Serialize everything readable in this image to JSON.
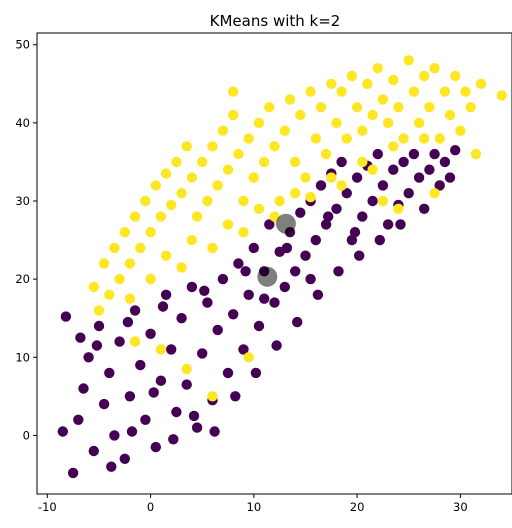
{
  "chart_data": {
    "type": "scatter",
    "title": "KMeans with k=2",
    "xlabel": "",
    "ylabel": "",
    "xlim": [
      -11,
      35
    ],
    "ylim": [
      -7.5,
      51.5
    ],
    "x_ticks": [
      -10,
      0,
      10,
      20,
      30
    ],
    "y_ticks": [
      0,
      10,
      20,
      30,
      40,
      50
    ],
    "grid": false,
    "legend": "none",
    "colors": {
      "cluster_0": "#440154",
      "cluster_1": "#fde725",
      "centroid": "#000000"
    },
    "clusters": [
      {
        "label": 0,
        "color": "#440154",
        "points": [
          [
            -8.5,
            0.5
          ],
          [
            -8.2,
            15.2
          ],
          [
            -7.5,
            -4.8
          ],
          [
            -7.0,
            2.0
          ],
          [
            -6.5,
            6.0
          ],
          [
            -6.0,
            10.0
          ],
          [
            -5.5,
            -2.0
          ],
          [
            -5.0,
            14.0
          ],
          [
            -4.5,
            4.0
          ],
          [
            -4.0,
            8.0
          ],
          [
            -3.5,
            0.0
          ],
          [
            -3.0,
            12.0
          ],
          [
            -2.5,
            -3.0
          ],
          [
            -2.0,
            5.0
          ],
          [
            -1.5,
            16.0
          ],
          [
            -1.0,
            9.0
          ],
          [
            -0.5,
            2.0
          ],
          [
            0.0,
            13.0
          ],
          [
            0.5,
            -1.5
          ],
          [
            1.0,
            7.0
          ],
          [
            1.5,
            18.0
          ],
          [
            2.0,
            11.0
          ],
          [
            2.5,
            3.0
          ],
          [
            3.0,
            15.0
          ],
          [
            3.5,
            6.5
          ],
          [
            4.0,
            19.0
          ],
          [
            4.5,
            1.0
          ],
          [
            5.0,
            10.5
          ],
          [
            5.5,
            17.0
          ],
          [
            6.0,
            4.5
          ],
          [
            6.5,
            13.5
          ],
          [
            7.0,
            20.0
          ],
          [
            7.5,
            8.0
          ],
          [
            8.0,
            15.5
          ],
          [
            8.5,
            22.0
          ],
          [
            9.0,
            11.0
          ],
          [
            9.5,
            18.0
          ],
          [
            10.0,
            24.0
          ],
          [
            10.5,
            14.0
          ],
          [
            11.0,
            21.0
          ],
          [
            11.5,
            27.0
          ],
          [
            12.0,
            17.0
          ],
          [
            12.5,
            23.5
          ],
          [
            13.0,
            19.0
          ],
          [
            13.5,
            26.0
          ],
          [
            14.0,
            21.0
          ],
          [
            14.5,
            28.5
          ],
          [
            15.0,
            23.0
          ],
          [
            15.5,
            30.0
          ],
          [
            16.0,
            25.0
          ],
          [
            16.5,
            32.0
          ],
          [
            17.0,
            27.0
          ],
          [
            17.5,
            33.5
          ],
          [
            18.0,
            29.0
          ],
          [
            18.5,
            35.0
          ],
          [
            19.0,
            31.0
          ],
          [
            19.5,
            25.0
          ],
          [
            20.0,
            33.0
          ],
          [
            20.5,
            28.0
          ],
          [
            21.0,
            34.5
          ],
          [
            21.5,
            30.0
          ],
          [
            22.0,
            36.0
          ],
          [
            22.5,
            32.0
          ],
          [
            23.0,
            27.0
          ],
          [
            23.5,
            34.0
          ],
          [
            24.0,
            29.5
          ],
          [
            24.5,
            35.0
          ],
          [
            25.0,
            31.0
          ],
          [
            25.5,
            36.0
          ],
          [
            26.0,
            33.0
          ],
          [
            26.5,
            29.0
          ],
          [
            27.0,
            34.0
          ],
          [
            27.5,
            36.0
          ],
          [
            28.0,
            32.0
          ],
          [
            28.5,
            35.0
          ],
          [
            29.0,
            33.0
          ],
          [
            29.5,
            36.5
          ],
          [
            -6.8,
            12.5
          ],
          [
            -3.8,
            -4.0
          ],
          [
            -1.8,
            0.5
          ],
          [
            0.3,
            5.5
          ],
          [
            2.2,
            -0.5
          ],
          [
            4.2,
            2.5
          ],
          [
            6.2,
            0.5
          ],
          [
            8.2,
            5.0
          ],
          [
            10.2,
            8.0
          ],
          [
            12.2,
            11.5
          ],
          [
            14.2,
            14.5
          ],
          [
            16.2,
            18.0
          ],
          [
            18.2,
            21.0
          ],
          [
            20.2,
            23.0
          ],
          [
            22.2,
            25.0
          ],
          [
            24.2,
            27.0
          ],
          [
            -5.2,
            11.5
          ],
          [
            -2.2,
            14.5
          ],
          [
            1.2,
            16.5
          ],
          [
            5.2,
            18.5
          ],
          [
            9.2,
            21.0
          ],
          [
            13.2,
            24.0
          ],
          [
            17.2,
            28.0
          ],
          [
            11.0,
            17.5
          ],
          [
            15.5,
            20.0
          ],
          [
            19.8,
            26.0
          ]
        ]
      },
      {
        "label": 1,
        "color": "#fde725",
        "points": [
          [
            -5.5,
            19.0
          ],
          [
            -5.0,
            16.0
          ],
          [
            -4.5,
            22.0
          ],
          [
            -4.0,
            18.0
          ],
          [
            -3.5,
            24.0
          ],
          [
            -3.0,
            20.0
          ],
          [
            -2.5,
            26.0
          ],
          [
            -2.0,
            22.0
          ],
          [
            -1.5,
            28.0
          ],
          [
            -1.0,
            24.0
          ],
          [
            -0.5,
            30.0
          ],
          [
            0.0,
            26.0
          ],
          [
            0.5,
            32.0
          ],
          [
            1.0,
            28.0
          ],
          [
            1.5,
            33.5
          ],
          [
            2.0,
            29.5
          ],
          [
            2.5,
            35.0
          ],
          [
            3.0,
            31.0
          ],
          [
            3.5,
            37.0
          ],
          [
            4.0,
            33.0
          ],
          [
            4.5,
            28.0
          ],
          [
            5.0,
            35.0
          ],
          [
            5.5,
            30.0
          ],
          [
            6.0,
            37.0
          ],
          [
            6.5,
            32.0
          ],
          [
            7.0,
            39.0
          ],
          [
            7.5,
            34.0
          ],
          [
            8.0,
            41.0
          ],
          [
            8.5,
            36.0
          ],
          [
            9.0,
            30.0
          ],
          [
            9.5,
            38.0
          ],
          [
            10.0,
            33.0
          ],
          [
            10.5,
            40.0
          ],
          [
            11.0,
            35.0
          ],
          [
            11.5,
            42.0
          ],
          [
            12.0,
            37.0
          ],
          [
            12.5,
            30.0
          ],
          [
            13.0,
            39.0
          ],
          [
            13.5,
            43.0
          ],
          [
            14.0,
            35.0
          ],
          [
            14.5,
            41.0
          ],
          [
            15.0,
            33.0
          ],
          [
            15.5,
            44.0
          ],
          [
            16.0,
            38.0
          ],
          [
            16.5,
            42.0
          ],
          [
            17.0,
            36.0
          ],
          [
            17.5,
            45.0
          ],
          [
            18.0,
            40.0
          ],
          [
            18.5,
            44.0
          ],
          [
            19.0,
            38.0
          ],
          [
            19.5,
            46.0
          ],
          [
            20.0,
            42.0
          ],
          [
            20.5,
            39.0
          ],
          [
            21.0,
            45.0
          ],
          [
            21.5,
            41.0
          ],
          [
            22.0,
            47.0
          ],
          [
            22.5,
            43.0
          ],
          [
            23.0,
            40.0
          ],
          [
            23.5,
            45.5
          ],
          [
            24.0,
            42.0
          ],
          [
            24.5,
            38.0
          ],
          [
            25.0,
            48.0
          ],
          [
            25.5,
            44.0
          ],
          [
            26.0,
            40.0
          ],
          [
            26.5,
            46.0
          ],
          [
            27.0,
            42.0
          ],
          [
            27.5,
            47.0
          ],
          [
            28.0,
            38.0
          ],
          [
            28.5,
            44.0
          ],
          [
            29.0,
            41.0
          ],
          [
            29.5,
            46.0
          ],
          [
            30.0,
            39.0
          ],
          [
            30.5,
            44.0
          ],
          [
            31.0,
            42.0
          ],
          [
            31.5,
            36.0
          ],
          [
            32.0,
            45.0
          ],
          [
            34.0,
            43.5
          ],
          [
            -2.0,
            17.5
          ],
          [
            1.5,
            23.0
          ],
          [
            4.0,
            25.0
          ],
          [
            7.5,
            27.0
          ],
          [
            10.5,
            29.0
          ],
          [
            14.0,
            31.0
          ],
          [
            17.5,
            33.0
          ],
          [
            20.5,
            35.0
          ],
          [
            23.5,
            37.0
          ],
          [
            26.5,
            38.0
          ],
          [
            0.0,
            20.0
          ],
          [
            3.0,
            21.5
          ],
          [
            6.0,
            24.0
          ],
          [
            9.0,
            26.0
          ],
          [
            12.0,
            28.0
          ],
          [
            15.5,
            30.5
          ],
          [
            18.5,
            32.0
          ],
          [
            21.5,
            34.0
          ],
          [
            1.0,
            11.0
          ],
          [
            9.5,
            10.0
          ],
          [
            6.0,
            5.0
          ],
          [
            3.5,
            8.5
          ],
          [
            -1.5,
            12.0
          ],
          [
            24.0,
            29.0
          ],
          [
            27.5,
            31.0
          ],
          [
            22.5,
            30.0
          ],
          [
            8.0,
            44.0
          ]
        ]
      }
    ],
    "centroids": [
      {
        "label": 0,
        "x": 11.3,
        "y": 20.3
      },
      {
        "label": 1,
        "x": 13.1,
        "y": 27.1
      }
    ]
  }
}
